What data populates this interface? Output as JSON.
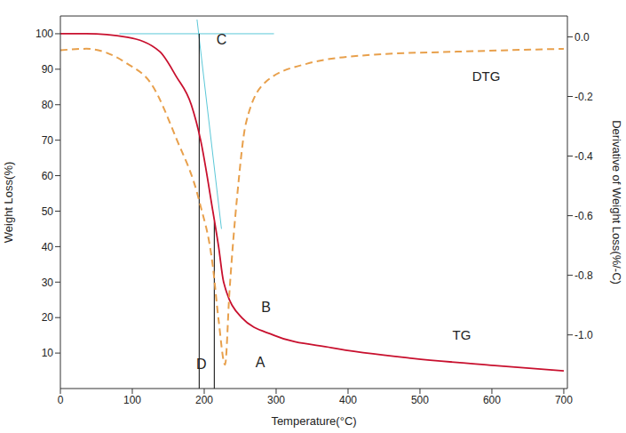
{
  "chart_data": {
    "type": "line",
    "x_label": "Temperature(°C)",
    "y_label": "Weight Loss(%)",
    "y2_label": "Derivative of Weight Loss(%/-C)",
    "xlim": [
      0,
      705
    ],
    "xticks": [
      0,
      100,
      200,
      300,
      400,
      500,
      600,
      700
    ],
    "ylim": [
      0,
      105
    ],
    "yticks": [
      10,
      20,
      30,
      40,
      50,
      60,
      70,
      80,
      90,
      100
    ],
    "y2lim": [
      -1.18,
      0.07
    ],
    "y2ticks": [
      {
        "value": 0,
        "label": "0.0"
      },
      -0.2,
      -0.4,
      -0.6,
      -0.8,
      {
        "value": -1,
        "label": "-1.0"
      }
    ],
    "grid": false,
    "series": [
      {
        "name": "TG",
        "color": "#c8102e",
        "line_style": "solid",
        "name_position": [
          558,
          15
        ],
        "x": [
          0,
          36,
          93,
          138,
          161,
          182,
          195,
          212,
          220,
          227,
          252,
          297,
          377,
          490,
          604,
          700
        ],
        "values": [
          100,
          100,
          99,
          95,
          88,
          80,
          70,
          50,
          40,
          30,
          20,
          15,
          11.5,
          8.5,
          6.5,
          5
        ]
      },
      {
        "name": "DTG",
        "color": "#e8a04c",
        "line_style": "dashed",
        "axis": "y2",
        "name_position": [
          592,
          88
        ],
        "x": [
          0,
          36,
          93,
          127,
          161,
          193,
          212,
          220,
          229,
          235,
          246,
          258,
          286,
          343,
          434,
          547,
          700
        ],
        "values": [
          -0.045,
          -0.04,
          -0.09,
          -0.16,
          -0.34,
          -0.55,
          -0.77,
          -0.95,
          -1.1,
          -0.86,
          -0.53,
          -0.29,
          -0.15,
          -0.09,
          -0.06,
          -0.05,
          -0.04
        ]
      }
    ],
    "lines": [
      {
        "color": "#5bc8d8",
        "x": [
          82,
          297
        ],
        "y": [
          100,
          100
        ]
      },
      {
        "color": "#5bc8d8",
        "x": [
          190,
          224
        ],
        "y": [
          104,
          45
        ]
      },
      {
        "color": "#000000",
        "x": [
          193,
          193
        ],
        "y": [
          0,
          100
        ]
      },
      {
        "color": "#000000",
        "x": [
          214,
          214
        ],
        "y": [
          0,
          47
        ]
      }
    ],
    "annotations": [
      {
        "text": "A",
        "x": 278,
        "y": 7.5
      },
      {
        "text": "B",
        "x": 286,
        "y": 23
      },
      {
        "text": "C",
        "x": 224,
        "y": 98.5
      },
      {
        "text": "D",
        "x": 196,
        "y": 7
      }
    ]
  }
}
